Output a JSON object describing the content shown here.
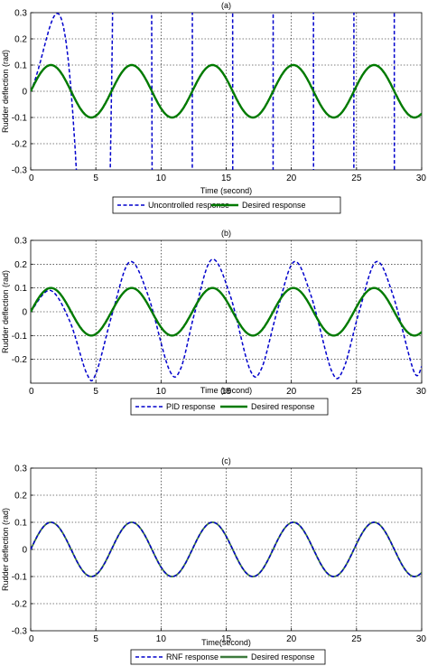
{
  "chart_data": [
    {
      "type": "line",
      "title": "(a)",
      "xlabel": "Time (second)",
      "ylabel": "Rudder deflection (rad)",
      "xlim": [
        0,
        30
      ],
      "ylim": [
        -0.3,
        0.3
      ],
      "xticks": [
        "0",
        "5",
        "10",
        "15",
        "20",
        "25",
        "30"
      ],
      "yticks": [
        "0.3",
        "0.2",
        "0.1",
        "0",
        "-0.1",
        "-0.2",
        "-0.3"
      ],
      "grid": true,
      "legend_position": "bottom-center",
      "series": [
        {
          "name": "Uncontrolled response",
          "color": "#0000cc",
          "style": "dashed",
          "kind": "growing",
          "amplitude_start": 0.11,
          "growth_rate": 0.55,
          "period": 6.2
        },
        {
          "name": "Desired response",
          "color": "#007a00",
          "style": "solid",
          "kind": "sine",
          "amplitude": 0.1,
          "period": 6.2
        }
      ]
    },
    {
      "type": "line",
      "title": "(b)",
      "xlabel": "Time (second)",
      "ylabel": "Rudder deflection (rad)",
      "xlim": [
        0,
        30
      ],
      "ylim": [
        -0.3,
        0.3
      ],
      "xticks": [
        "0",
        "5",
        "10",
        "15",
        "20",
        "25",
        "30"
      ],
      "yticks": [
        "0.3",
        "0.2",
        "0.1",
        "0",
        "-0.1",
        "-0.2"
      ],
      "grid": true,
      "legend_position": "bottom-center",
      "series": [
        {
          "name": "PID response",
          "color": "#0000cc",
          "style": "dashed",
          "kind": "pid",
          "x": [
            0,
            1.5,
            3.0,
            4.3,
            5.0,
            6.3,
            7.6,
            9.0,
            10.6,
            11.5,
            12.6,
            13.9,
            15.3,
            16.8,
            17.7,
            18.9,
            20.2,
            21.5,
            23.1,
            24.0,
            25.2,
            26.5,
            27.8,
            29.4,
            30.0
          ],
          "y": [
            0,
            0.09,
            -0.04,
            -0.26,
            -0.26,
            0.0,
            0.21,
            0.07,
            -0.24,
            -0.24,
            0.0,
            0.22,
            0.07,
            -0.24,
            -0.24,
            0.0,
            0.21,
            0.07,
            -0.25,
            -0.24,
            0.0,
            0.21,
            0.07,
            -0.25,
            -0.23
          ]
        },
        {
          "name": "Desired response",
          "color": "#007a00",
          "style": "solid",
          "kind": "sine",
          "amplitude": 0.1,
          "period": 6.2
        }
      ]
    },
    {
      "type": "line",
      "title": "(c)",
      "xlabel": "Time(second)",
      "ylabel": "Rudder deflection (rad)",
      "xlim": [
        0,
        30
      ],
      "ylim": [
        -0.3,
        0.3
      ],
      "xticks": [
        "0",
        "5",
        "10",
        "15",
        "20",
        "25",
        "30"
      ],
      "yticks": [
        "0.3",
        "0.2",
        "0.1",
        "0",
        "-0.1",
        "-0.2",
        "-0.3"
      ],
      "grid": true,
      "legend_position": "bottom-center",
      "series": [
        {
          "name": "RNF response",
          "color": "#0000cc",
          "style": "dashed",
          "kind": "sine",
          "amplitude": 0.1,
          "period": 6.2
        },
        {
          "name": "Desired response",
          "color": "#3d7a3d",
          "style": "solid",
          "kind": "sine",
          "amplitude": 0.1,
          "period": 6.2
        }
      ]
    }
  ]
}
